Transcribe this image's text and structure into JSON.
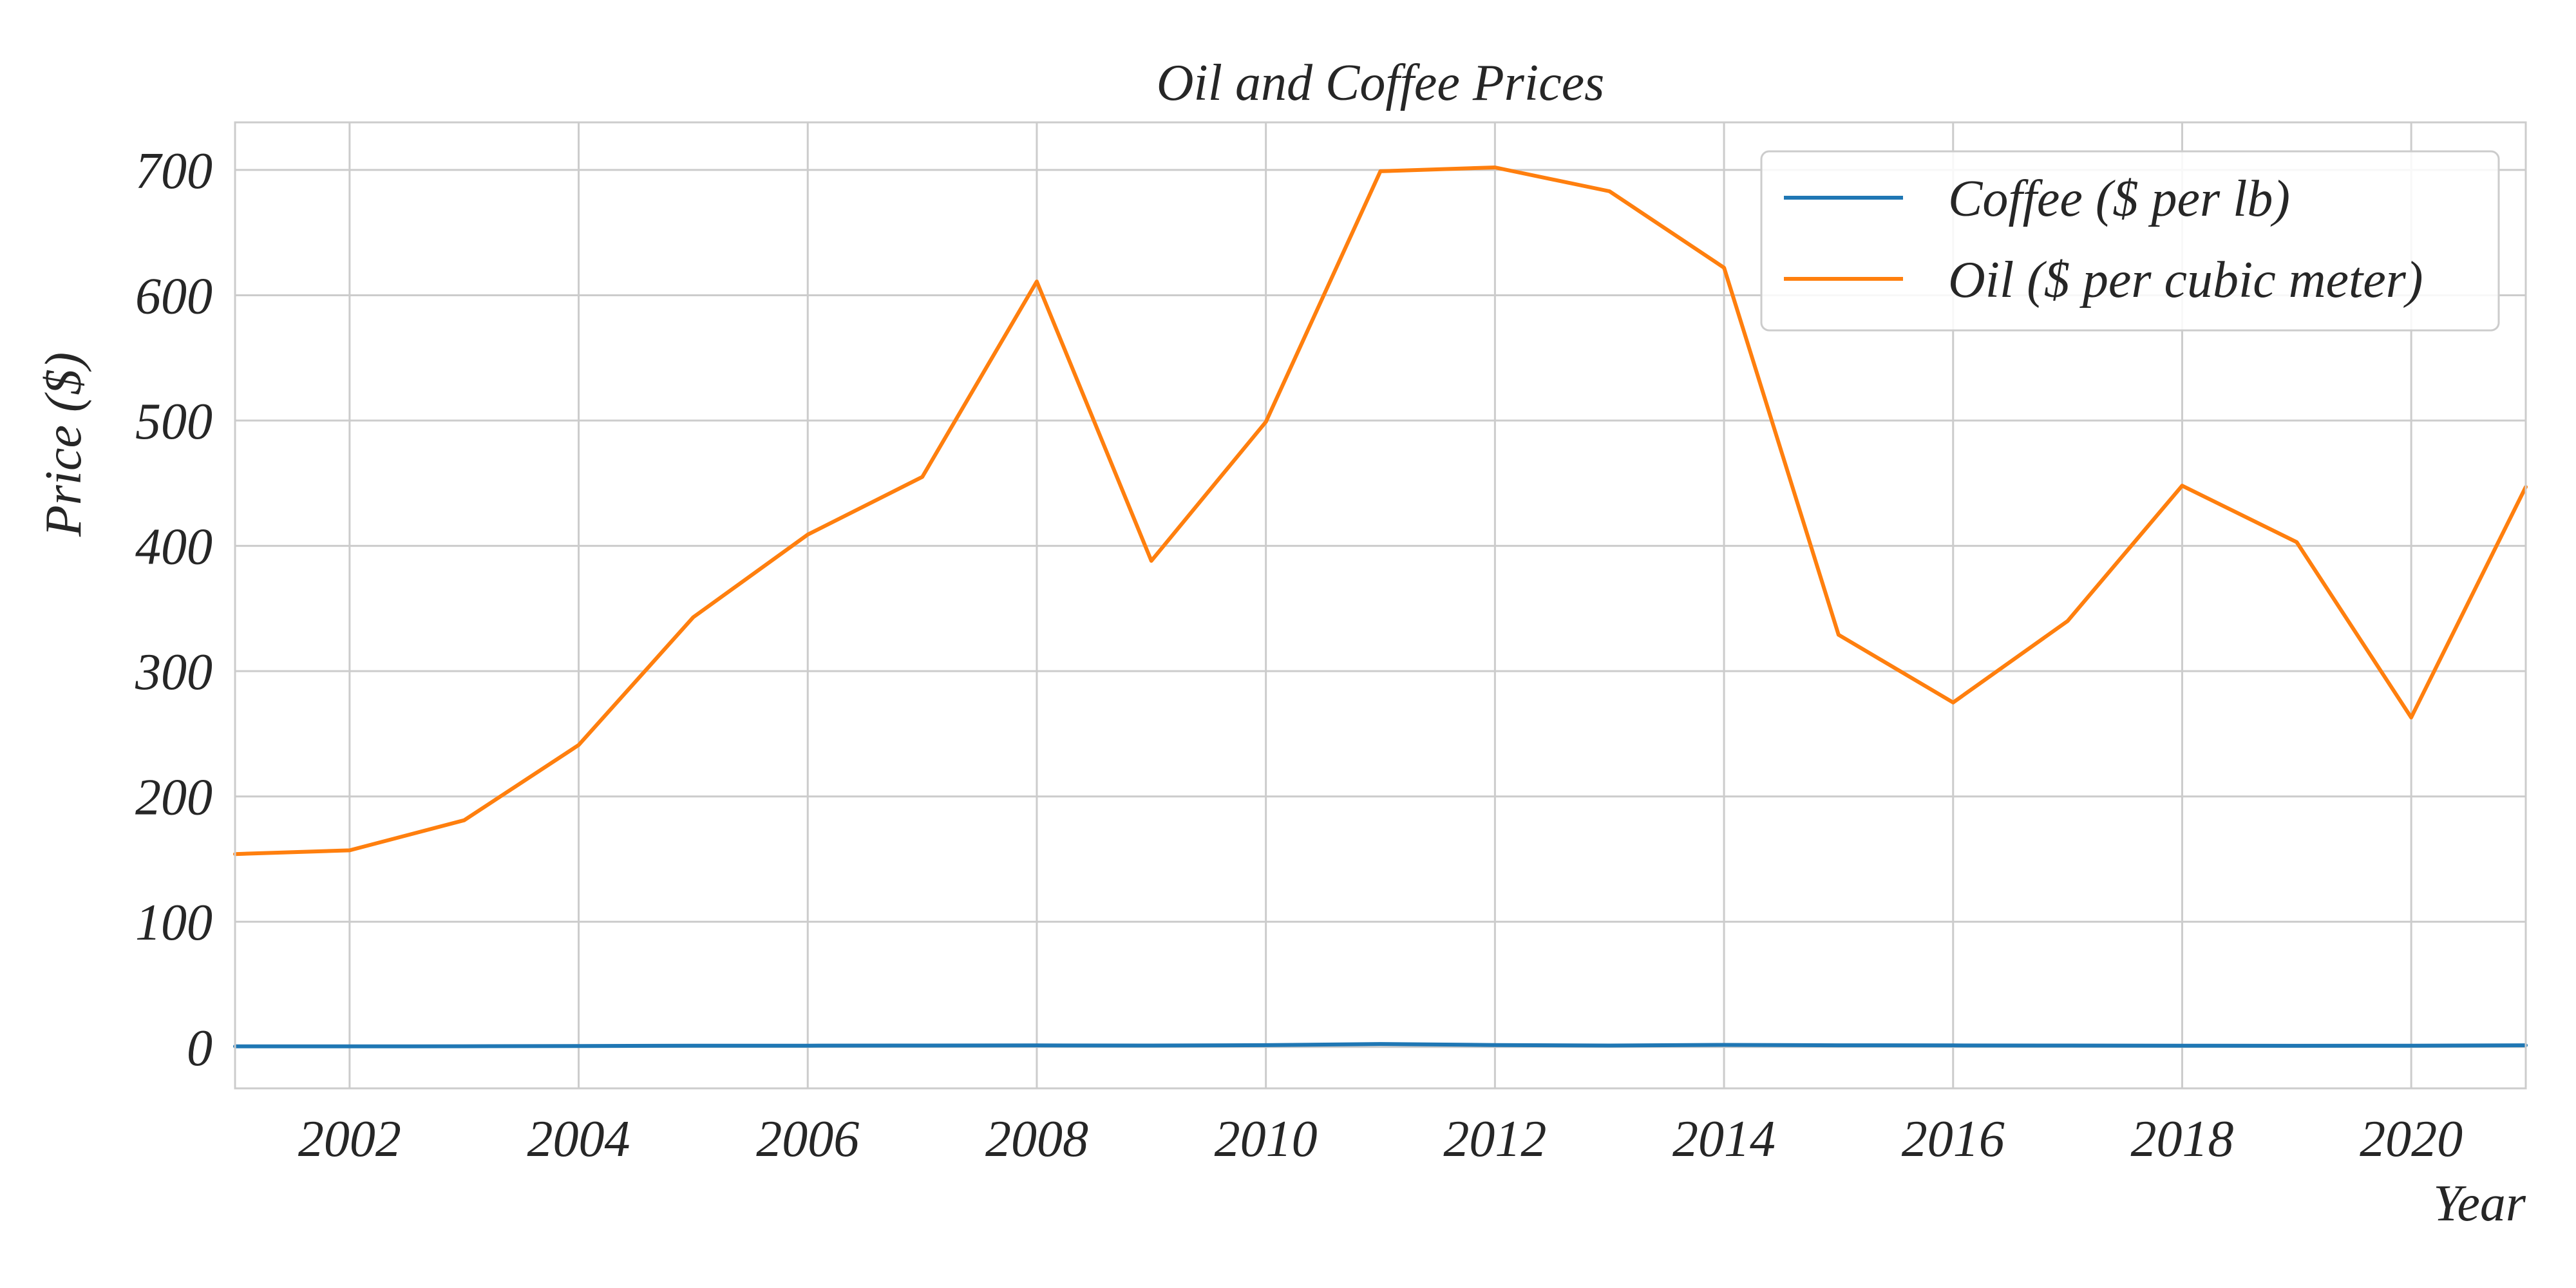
{
  "chart_data": {
    "type": "line",
    "title": "Oil and Coffee Prices",
    "xlabel": "Year",
    "ylabel": "Price ($)",
    "xlim": [
      2001,
      2021
    ],
    "ylim": [
      -33,
      738
    ],
    "xticks": [
      2002,
      2004,
      2006,
      2008,
      2010,
      2012,
      2014,
      2016,
      2018,
      2020
    ],
    "yticks": [
      0,
      100,
      200,
      300,
      400,
      500,
      600,
      700
    ],
    "grid": true,
    "legend": "top-right",
    "x": [
      2001,
      2002,
      2003,
      2004,
      2005,
      2006,
      2007,
      2008,
      2009,
      2010,
      2011,
      2012,
      2013,
      2014,
      2015,
      2016,
      2017,
      2018,
      2019,
      2020,
      2021
    ],
    "series": [
      {
        "name": "Coffee ($ per lb)",
        "color": "#1f77b4",
        "values": [
          0.5,
          0.5,
          0.6,
          0.8,
          1.1,
          1.1,
          1.2,
          1.3,
          1.2,
          1.5,
          2.4,
          1.6,
          1.2,
          1.7,
          1.4,
          1.3,
          1.2,
          1.1,
          1.0,
          1.1,
          1.4
        ]
      },
      {
        "name": "Oil ($ per cubic meter)",
        "color": "#ff7f0e",
        "values": [
          154,
          157,
          181,
          241,
          343,
          409,
          455,
          611,
          388,
          499,
          699,
          702,
          683,
          622,
          329,
          275,
          340,
          448,
          403,
          263,
          447
        ]
      }
    ]
  }
}
